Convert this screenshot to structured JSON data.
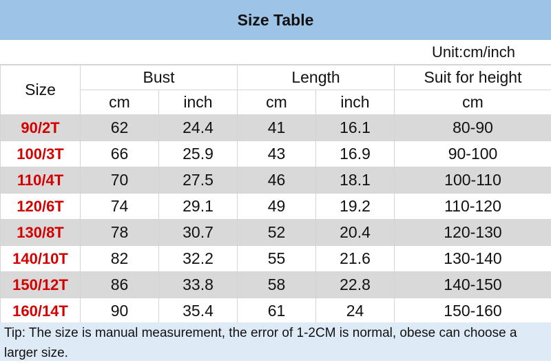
{
  "title": "Size Table",
  "unit": "Unit:cm/inch",
  "headers": {
    "size": "Size",
    "bust": "Bust",
    "length": "Length",
    "height": "Suit for height",
    "cm": "cm",
    "inch": "inch"
  },
  "rows": [
    {
      "size": "90/2T",
      "bust_cm": "62",
      "bust_in": "24.4",
      "len_cm": "41",
      "len_in": "16.1",
      "height": "80-90"
    },
    {
      "size": "100/3T",
      "bust_cm": "66",
      "bust_in": "25.9",
      "len_cm": "43",
      "len_in": "16.9",
      "height": "90-100"
    },
    {
      "size": "110/4T",
      "bust_cm": "70",
      "bust_in": "27.5",
      "len_cm": "46",
      "len_in": "18.1",
      "height": "100-110"
    },
    {
      "size": "120/6T",
      "bust_cm": "74",
      "bust_in": "29.1",
      "len_cm": "49",
      "len_in": "19.2",
      "height": "110-120"
    },
    {
      "size": "130/8T",
      "bust_cm": "78",
      "bust_in": "30.7",
      "len_cm": "52",
      "len_in": "20.4",
      "height": "120-130"
    },
    {
      "size": "140/10T",
      "bust_cm": "82",
      "bust_in": "32.2",
      "len_cm": "55",
      "len_in": "21.6",
      "height": "130-140"
    },
    {
      "size": "150/12T",
      "bust_cm": "86",
      "bust_in": "33.8",
      "len_cm": "58",
      "len_in": "22.8",
      "height": "140-150"
    },
    {
      "size": "160/14T",
      "bust_cm": "90",
      "bust_in": "35.4",
      "len_cm": "61",
      "len_in": "24",
      "height": "150-160"
    }
  ],
  "tip": "Tip: The size is manual measurement, the error of 1-2CM is normal, obese can choose a larger size.",
  "colors": {
    "title_bg": "#9dc3e6",
    "size_text": "#d40000",
    "stripe": "#d9d9d9",
    "tip_bg": "#deebf7"
  }
}
